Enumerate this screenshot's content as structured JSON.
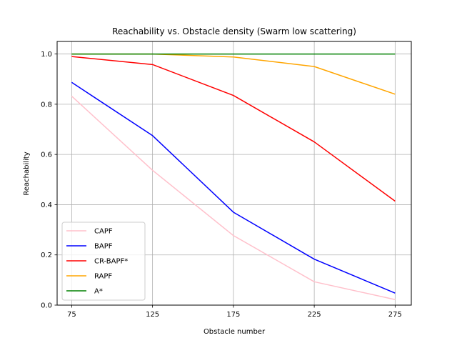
{
  "chart_data": {
    "type": "line",
    "title": "Reachability vs. Obstacle density (Swarm low scattering)",
    "xlabel": "Obstacle number",
    "ylabel": "Reachability",
    "x": [
      75,
      125,
      175,
      225,
      275
    ],
    "x_tick_labels": [
      "75",
      "125",
      "175",
      "225",
      "275"
    ],
    "y_ticks": [
      0.0,
      0.2,
      0.4,
      0.6,
      0.8,
      1.0
    ],
    "y_tick_labels": [
      "0.0",
      "0.2",
      "0.4",
      "0.6",
      "0.8",
      "1.0"
    ],
    "xlim": [
      66,
      285
    ],
    "ylim": [
      0.0,
      1.05
    ],
    "grid": true,
    "legend_position": "bottom-left",
    "series": [
      {
        "name": "CAPF",
        "color": "#ffc0cb",
        "values": [
          0.832,
          0.537,
          0.277,
          0.093,
          0.022
        ]
      },
      {
        "name": "BAPF",
        "color": "#0000ff",
        "values": [
          0.887,
          0.675,
          0.37,
          0.183,
          0.048
        ]
      },
      {
        "name": "CR-BAPF*",
        "color": "#ff0000",
        "values": [
          0.99,
          0.958,
          0.835,
          0.65,
          0.414
        ]
      },
      {
        "name": "RAPF",
        "color": "#ffa500",
        "values": [
          1.0,
          1.0,
          0.988,
          0.95,
          0.84
        ]
      },
      {
        "name": "A*",
        "color": "#008000",
        "values": [
          1.0,
          1.0,
          1.0,
          1.0,
          1.0
        ]
      }
    ]
  }
}
